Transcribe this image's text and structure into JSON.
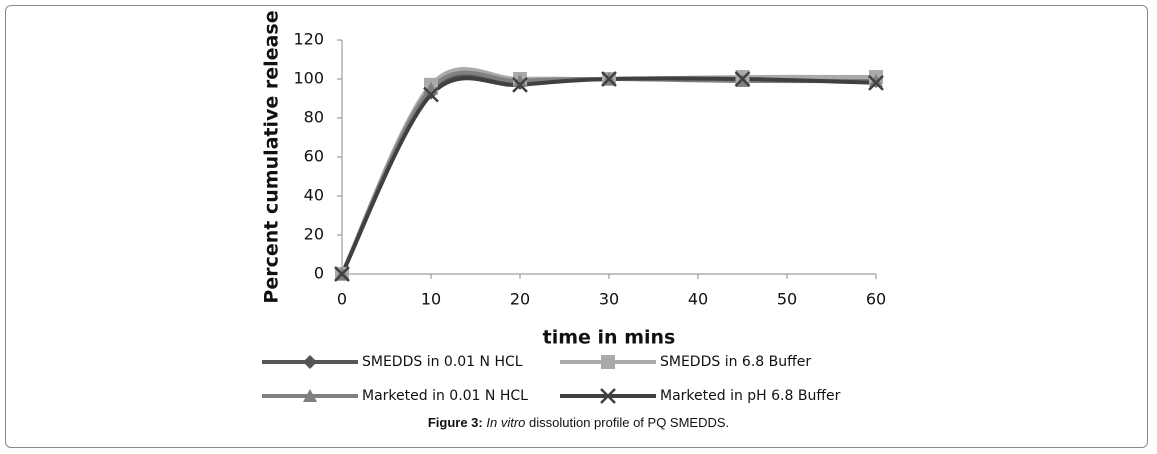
{
  "chart_data": {
    "type": "line",
    "y_label": "Percent cumulative release",
    "x_label": "time in mins",
    "x": [
      0,
      10,
      20,
      30,
      45,
      60
    ],
    "series": [
      {
        "name": "SMEDDS in 0.01 N HCL",
        "color": "#555555",
        "marker": "diamond",
        "values": [
          0,
          93,
          98,
          100,
          100,
          99
        ]
      },
      {
        "name": "SMEDDS in 6.8 Buffer",
        "color": "#aaaaaa",
        "marker": "square",
        "values": [
          0,
          97,
          100,
          100,
          101,
          101
        ]
      },
      {
        "name": "Marketed in 0.01 N HCL",
        "color": "#808080",
        "marker": "triangle",
        "values": [
          0,
          95,
          99,
          100,
          99,
          99
        ]
      },
      {
        "name": "Marketed in pH 6.8 Buffer",
        "color": "#404040",
        "marker": "x",
        "values": [
          0,
          92,
          97,
          100,
          100,
          98
        ]
      }
    ],
    "xlim": [
      0,
      60
    ],
    "xticks": [
      0,
      10,
      20,
      30,
      40,
      50,
      60
    ],
    "ylim": [
      0,
      120
    ],
    "yticks": [
      0,
      20,
      40,
      60,
      80,
      100,
      120
    ],
    "smooth": true
  },
  "caption": {
    "label": "Figure 3:",
    "italic": "In vitro",
    "text": "dissolution profile of PQ SMEDDS."
  }
}
